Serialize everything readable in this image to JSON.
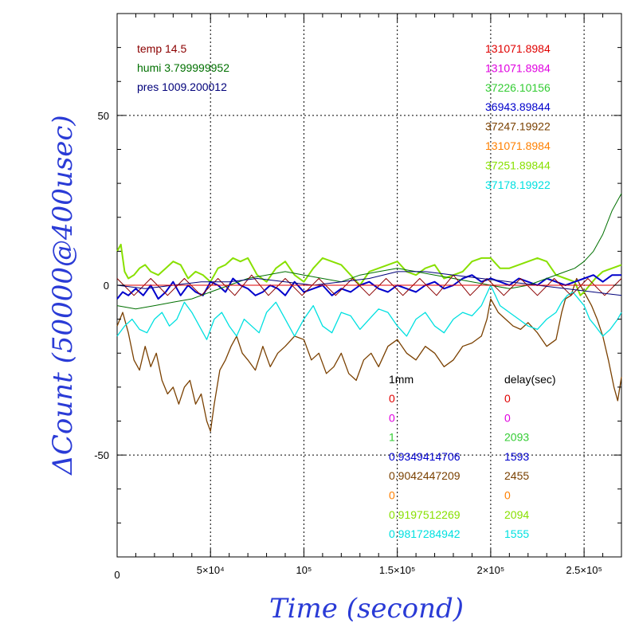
{
  "chart_data": {
    "type": "line",
    "xlabel": "Time (second)",
    "ylabel": "ΔCount (50000@400usec)",
    "xlim": [
      0,
      270000
    ],
    "ylim": [
      -80,
      80
    ],
    "x_ticks": [
      {
        "value": 0,
        "label": "0"
      },
      {
        "value": 50000,
        "label": "5×10⁴"
      },
      {
        "value": 100000,
        "label": "10⁵"
      },
      {
        "value": 150000,
        "label": "1.5×10⁵"
      },
      {
        "value": 200000,
        "label": "2×10⁵"
      },
      {
        "value": 250000,
        "label": "2.5×10⁵"
      }
    ],
    "y_ticks": [
      {
        "value": 50,
        "label": "50"
      },
      {
        "value": 0,
        "label": "0"
      },
      {
        "value": -50,
        "label": "-50"
      }
    ],
    "grid": true,
    "env_labels": [
      {
        "text": "temp 14.5",
        "color": "#8b0000"
      },
      {
        "text": "humi 3.799999952",
        "color": "#007000"
      },
      {
        "text": "pres 1009.200012",
        "color": "#00007a"
      }
    ],
    "count_labels": [
      {
        "text": "131071.8984",
        "color": "#e00000"
      },
      {
        "text": "131071.8984",
        "color": "#e000e0"
      },
      {
        "text": "37226.10156",
        "color": "#33cc33"
      },
      {
        "text": "36943.89844",
        "color": "#0000cc"
      },
      {
        "text": "37247.19922",
        "color": "#7a4000"
      },
      {
        "text": "131071.8984",
        "color": "#ff8000"
      },
      {
        "text": "37251.89844",
        "color": "#88e000"
      },
      {
        "text": "37178.19922",
        "color": "#00e0e0"
      }
    ],
    "table_headers": {
      "col1": "1mm",
      "col2": "delay(sec)"
    },
    "table_rows": [
      {
        "c1": "0",
        "c2": "0",
        "color": "#e00000"
      },
      {
        "c1": "0",
        "c2": "0",
        "color": "#e000e0"
      },
      {
        "c1": "1",
        "c2": "2093",
        "color": "#33cc33"
      },
      {
        "c1": "0.9349414706",
        "c2": "1593",
        "color": "#0000cc"
      },
      {
        "c1": "0.9042447209",
        "c2": "2455",
        "color": "#7a4000"
      },
      {
        "c1": "0",
        "c2": "0",
        "color": "#ff8000"
      },
      {
        "c1": "0.9197512269",
        "c2": "2094",
        "color": "#88e000"
      },
      {
        "c1": "0.9817284942",
        "c2": "1555",
        "color": "#00e0e0"
      }
    ],
    "series": [
      {
        "color": "#7a4000",
        "width": 1.3,
        "x": [
          0,
          3000,
          6000,
          9000,
          12000,
          15000,
          18000,
          21000,
          24000,
          27000,
          30000,
          33000,
          36000,
          39000,
          42000,
          45000,
          48000,
          50000,
          52000,
          55000,
          58000,
          61000,
          64000,
          67000,
          70000,
          74000,
          78000,
          82000,
          86000,
          90000,
          95000,
          100000,
          104000,
          108000,
          112000,
          116000,
          120000,
          124000,
          128000,
          132000,
          136000,
          140000,
          145000,
          150000,
          155000,
          160000,
          165000,
          170000,
          175000,
          180000,
          185000,
          190000,
          195000,
          198000,
          200000,
          204000,
          208000,
          212000,
          216000,
          220000,
          225000,
          230000,
          235000,
          238000,
          240000,
          243000,
          246000,
          250000,
          254000,
          257000,
          260000,
          263000,
          266000,
          268000,
          270000
        ],
        "y": [
          -12,
          -8,
          -14,
          -22,
          -25,
          -18,
          -24,
          -20,
          -28,
          -32,
          -30,
          -35,
          -30,
          -28,
          -35,
          -32,
          -40,
          -43,
          -35,
          -25,
          -22,
          -18,
          -15,
          -20,
          -22,
          -25,
          -18,
          -24,
          -20,
          -18,
          -15,
          -16,
          -22,
          -20,
          -26,
          -24,
          -20,
          -26,
          -28,
          -22,
          -20,
          -24,
          -18,
          -16,
          -20,
          -22,
          -18,
          -20,
          -24,
          -22,
          -18,
          -17,
          -15,
          -10,
          -4,
          -8,
          -10,
          -12,
          -13,
          -11,
          -14,
          -18,
          -16,
          -8,
          -4,
          -3,
          2,
          -2,
          -6,
          -10,
          -15,
          -22,
          -30,
          -34,
          -27
        ]
      },
      {
        "color": "#00e0e0",
        "width": 1.3,
        "x": [
          0,
          4000,
          8000,
          12000,
          16000,
          20000,
          24000,
          28000,
          32000,
          36000,
          40000,
          44000,
          48000,
          52000,
          56000,
          60000,
          64000,
          68000,
          72000,
          76000,
          80000,
          85000,
          90000,
          95000,
          100000,
          105000,
          110000,
          115000,
          120000,
          125000,
          130000,
          135000,
          140000,
          145000,
          150000,
          155000,
          160000,
          165000,
          170000,
          175000,
          180000,
          185000,
          190000,
          195000,
          200000,
          205000,
          210000,
          215000,
          220000,
          225000,
          230000,
          235000,
          238000,
          241000,
          244000,
          247000,
          250000,
          253000,
          256000,
          260000,
          264000,
          268000,
          270000
        ],
        "y": [
          -15,
          -12,
          -10,
          -13,
          -14,
          -10,
          -8,
          -12,
          -10,
          -5,
          -8,
          -12,
          -16,
          -10,
          -8,
          -12,
          -15,
          -10,
          -12,
          -14,
          -8,
          -5,
          -10,
          -15,
          -10,
          -6,
          -12,
          -14,
          -8,
          -9,
          -13,
          -10,
          -7,
          -8,
          -12,
          -15,
          -10,
          -8,
          -12,
          -14,
          -10,
          -8,
          -9,
          -6,
          0,
          -6,
          -8,
          -10,
          -12,
          -13,
          -10,
          -8,
          -5,
          -3,
          -2,
          -4,
          -6,
          -10,
          -12,
          -15,
          -13,
          -10,
          -8
        ]
      },
      {
        "color": "#88e000",
        "width": 2,
        "x": [
          0,
          2000,
          4000,
          6000,
          9000,
          12000,
          15000,
          18000,
          22000,
          26000,
          30000,
          34000,
          38000,
          42000,
          46000,
          50000,
          54000,
          58000,
          62000,
          66000,
          70000,
          75000,
          80000,
          85000,
          90000,
          95000,
          100000,
          105000,
          110000,
          115000,
          120000,
          125000,
          130000,
          135000,
          140000,
          145000,
          150000,
          155000,
          160000,
          165000,
          170000,
          175000,
          180000,
          185000,
          190000,
          195000,
          200000,
          205000,
          210000,
          215000,
          220000,
          225000,
          230000,
          235000,
          240000,
          245000,
          248000,
          250000,
          253000,
          256000,
          260000,
          265000,
          270000
        ],
        "y": [
          10,
          12,
          4,
          2,
          3,
          5,
          6,
          4,
          3,
          5,
          7,
          6,
          2,
          4,
          3,
          1,
          5,
          6,
          8,
          7,
          8,
          3,
          1,
          5,
          7,
          3,
          1,
          5,
          8,
          7,
          6,
          3,
          0,
          4,
          5,
          6,
          7,
          4,
          3,
          5,
          6,
          2,
          3,
          4,
          7,
          8,
          8,
          5,
          5,
          6,
          7,
          8,
          7,
          3,
          2,
          1,
          -3,
          -2,
          0,
          2,
          4,
          5,
          6
        ]
      },
      {
        "color": "#0000cc",
        "width": 2,
        "x": [
          0,
          3000,
          6000,
          10000,
          14000,
          18000,
          22000,
          26000,
          30000,
          34000,
          38000,
          42000,
          46000,
          50000,
          54000,
          58000,
          62000,
          66000,
          70000,
          74000,
          78000,
          82000,
          86000,
          90000,
          95000,
          100000,
          105000,
          110000,
          115000,
          120000,
          125000,
          130000,
          135000,
          140000,
          145000,
          150000,
          155000,
          160000,
          165000,
          170000,
          175000,
          180000,
          185000,
          190000,
          195000,
          200000,
          205000,
          210000,
          215000,
          220000,
          225000,
          230000,
          235000,
          240000,
          245000,
          250000,
          255000,
          260000,
          265000,
          270000
        ],
        "y": [
          -4,
          -2,
          -3,
          -1,
          -3,
          0,
          -4,
          -2,
          1,
          -3,
          0,
          -2,
          -3,
          1,
          0,
          -2,
          2,
          0,
          -1,
          -3,
          -2,
          0,
          -1,
          -3,
          1,
          -2,
          -1,
          0,
          -3,
          -1,
          -2,
          0,
          1,
          -1,
          -2,
          0,
          -1,
          -2,
          0,
          1,
          -1,
          0,
          2,
          3,
          1,
          2,
          1,
          0,
          2,
          1,
          0,
          2,
          1,
          0,
          1,
          2,
          3,
          1,
          3,
          3
        ]
      },
      {
        "color": "#007000",
        "width": 1,
        "x": [
          0,
          10000,
          20000,
          30000,
          40000,
          50000,
          60000,
          70000,
          80000,
          90000,
          100000,
          110000,
          120000,
          130000,
          140000,
          150000,
          160000,
          170000,
          180000,
          190000,
          200000,
          210000,
          220000,
          230000,
          240000,
          245000,
          250000,
          255000,
          260000,
          265000,
          270000
        ],
        "y": [
          -6,
          -7,
          -6,
          -5,
          -4,
          -2,
          0,
          2,
          3,
          4,
          3,
          2,
          1,
          3,
          4,
          5,
          4,
          3,
          2,
          1,
          0,
          -1,
          0,
          2,
          4,
          5,
          7,
          10,
          15,
          22,
          27
        ]
      },
      {
        "color": "#8b0000",
        "width": 1,
        "x": [
          0,
          9000,
          18000,
          27000,
          36000,
          45000,
          54000,
          63000,
          72000,
          81000,
          90000,
          99000,
          108000,
          117000,
          126000,
          135000,
          144000,
          153000,
          162000,
          171000,
          180000,
          189000,
          198000,
          207000,
          216000,
          225000,
          234000,
          243000,
          252000,
          261000,
          270000
        ],
        "y": [
          2,
          -3,
          2,
          -3,
          2,
          -3,
          2,
          -3,
          3,
          -3,
          2,
          -3,
          2,
          -3,
          2,
          -3,
          2,
          -3,
          2,
          -3,
          3,
          -3,
          2,
          -3,
          2,
          -3,
          2,
          -3,
          2,
          -3,
          2
        ]
      },
      {
        "color": "#00007a",
        "width": 1,
        "x": [
          0,
          15000,
          30000,
          45000,
          60000,
          75000,
          90000,
          105000,
          120000,
          135000,
          150000,
          165000,
          180000,
          195000,
          210000,
          225000,
          240000,
          255000,
          270000
        ],
        "y": [
          0,
          -1,
          0,
          1,
          1,
          2,
          1,
          0,
          1,
          2,
          4,
          4,
          3,
          2,
          1,
          0,
          -1,
          -2,
          -3
        ]
      },
      {
        "color": "#e00000",
        "width": 1,
        "x": [
          0,
          270000
        ],
        "y": [
          0,
          0
        ]
      }
    ]
  }
}
